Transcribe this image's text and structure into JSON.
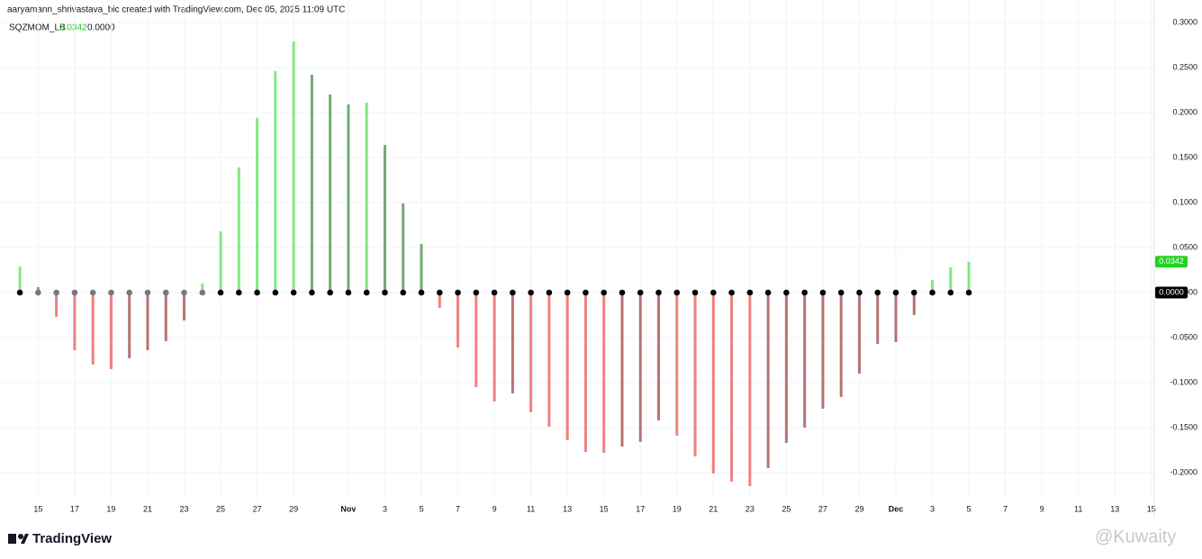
{
  "header": "aaryamann_shrivastava_bic created with TradingView.com, Dec 05, 2025 11:09 UTC",
  "legend": {
    "name": "SQZMOM_LB",
    "values": [
      "0.0342",
      "0.0000"
    ]
  },
  "branding": "TradingView",
  "watermark": "@Kuwaity",
  "chart_data": {
    "type": "histogram-momentum",
    "x": [
      0,
      1,
      2,
      3,
      4,
      5,
      6,
      7,
      8,
      9,
      10,
      11,
      12,
      13,
      14,
      15,
      16,
      17,
      18,
      19,
      20,
      21,
      22,
      23,
      24,
      25,
      26,
      27,
      28,
      29,
      30,
      31,
      32,
      33,
      34,
      35,
      36,
      37,
      38,
      39,
      40,
      41,
      42,
      43,
      44,
      45,
      46,
      47,
      48,
      49,
      50,
      51,
      52
    ],
    "series": [
      {
        "name": "SQZMOM_LB",
        "values": [
          0.029,
          0.006,
          -0.027,
          -0.064,
          -0.08,
          -0.085,
          -0.073,
          -0.064,
          -0.054,
          -0.031,
          0.01,
          0.068,
          0.139,
          0.194,
          0.246,
          0.279,
          0.242,
          0.22,
          0.209,
          0.211,
          0.164,
          0.099,
          0.054,
          -0.017,
          -0.061,
          -0.105,
          -0.121,
          -0.112,
          -0.133,
          -0.149,
          -0.164,
          -0.177,
          -0.178,
          -0.171,
          -0.166,
          -0.142,
          -0.159,
          -0.182,
          -0.201,
          -0.21,
          -0.215,
          -0.195,
          -0.167,
          -0.15,
          -0.129,
          -0.116,
          -0.09,
          -0.057,
          -0.055,
          -0.025,
          0.014,
          0.028,
          0.0342
        ],
        "colors": {
          "positive_rising": "#80ea80",
          "positive_falling": "#73ab73",
          "negative_falling": "#f08080",
          "negative_rising": "#b57474"
        }
      }
    ],
    "squeeze_colors": [
      "#000000",
      "#787878",
      "#787878",
      "#787878",
      "#787878",
      "#787878",
      "#787878",
      "#787878",
      "#787878",
      "#787878",
      "#787878",
      "#000000",
      "#000000",
      "#000000",
      "#000000",
      "#000000",
      "#000000",
      "#000000",
      "#000000",
      "#000000",
      "#000000",
      "#000000",
      "#000000",
      "#000000",
      "#000000",
      "#000000",
      "#000000",
      "#000000",
      "#000000",
      "#000000",
      "#000000",
      "#000000",
      "#000000",
      "#000000",
      "#000000",
      "#000000",
      "#000000",
      "#000000",
      "#000000",
      "#000000",
      "#000000",
      "#000000",
      "#000000",
      "#000000",
      "#000000",
      "#000000",
      "#000000",
      "#000000",
      "#000000",
      "#000000",
      "#000000",
      "#000000",
      "#000000"
    ],
    "xlim": [
      -1.09,
      62.16
    ],
    "xticks": [
      {
        "value": 1,
        "label": "15"
      },
      {
        "value": 3,
        "label": "17"
      },
      {
        "value": 5,
        "label": "19"
      },
      {
        "value": 7,
        "label": "21"
      },
      {
        "value": 9,
        "label": "23"
      },
      {
        "value": 11,
        "label": "25"
      },
      {
        "value": 13,
        "label": "27"
      },
      {
        "value": 15,
        "label": "29"
      },
      {
        "value": 18,
        "label": "Nov"
      },
      {
        "value": 20,
        "label": "3"
      },
      {
        "value": 22,
        "label": "5"
      },
      {
        "value": 24,
        "label": "7"
      },
      {
        "value": 26,
        "label": "9"
      },
      {
        "value": 28,
        "label": "11"
      },
      {
        "value": 30,
        "label": "13"
      },
      {
        "value": 32,
        "label": "15"
      },
      {
        "value": 34,
        "label": "17"
      },
      {
        "value": 36,
        "label": "19"
      },
      {
        "value": 38,
        "label": "21"
      },
      {
        "value": 40,
        "label": "23"
      },
      {
        "value": 42,
        "label": "25"
      },
      {
        "value": 44,
        "label": "27"
      },
      {
        "value": 46,
        "label": "29"
      },
      {
        "value": 48,
        "label": "Dec"
      },
      {
        "value": 50,
        "label": "3"
      },
      {
        "value": 52,
        "label": "5"
      },
      {
        "value": 54,
        "label": "7"
      },
      {
        "value": 56,
        "label": "9"
      },
      {
        "value": 58,
        "label": "11"
      },
      {
        "value": 60,
        "label": "13"
      },
      {
        "value": 62,
        "label": "15"
      }
    ],
    "ylim": [
      -0.23,
      0.31
    ],
    "yticks": [
      {
        "value": 0.3,
        "label": "0.3000"
      },
      {
        "value": 0.25,
        "label": "0.2500"
      },
      {
        "value": 0.2,
        "label": "0.2000"
      },
      {
        "value": 0.15,
        "label": "0.1500"
      },
      {
        "value": 0.1,
        "label": "0.1000"
      },
      {
        "value": 0.05,
        "label": "0.0500"
      },
      {
        "value": 0,
        "label": "0.0000"
      },
      {
        "value": -0.05,
        "label": "-0.0500"
      },
      {
        "value": -0.1,
        "label": "-0.1000"
      },
      {
        "value": -0.15,
        "label": "-0.1500"
      },
      {
        "value": -0.2,
        "label": "-0.2000"
      }
    ],
    "grid": true
  }
}
